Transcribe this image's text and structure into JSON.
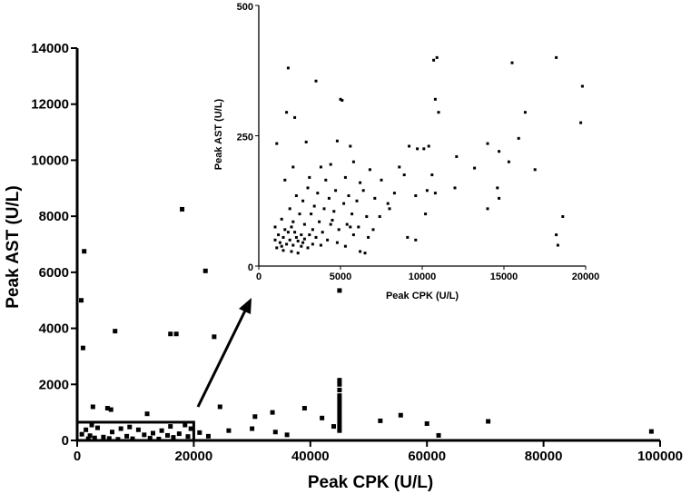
{
  "chart_data": [
    {
      "id": "main",
      "type": "scatter",
      "title": "",
      "xlabel": "Peak CPK (U/L)",
      "ylabel": "Peak AST (U/L)",
      "xlim": [
        0,
        100000
      ],
      "ylim": [
        0,
        14000
      ],
      "xticks": [
        0,
        20000,
        40000,
        60000,
        80000,
        100000
      ],
      "yticks": [
        0,
        2000,
        4000,
        6000,
        8000,
        10000,
        12000,
        14000
      ],
      "xtick_labels": [
        "0",
        "20000",
        "40000",
        "60000",
        "80000",
        "100000"
      ],
      "ytick_labels": [
        "0",
        "2000",
        "4000",
        "6000",
        "8000",
        "10000",
        "12000",
        "14000"
      ],
      "grid": false,
      "highlight_box": {
        "x": [
          0,
          20000
        ],
        "y": [
          0,
          650
        ]
      },
      "points": [
        [
          18000,
          8250
        ],
        [
          1200,
          6750
        ],
        [
          22000,
          6050
        ],
        [
          700,
          5000
        ],
        [
          45000,
          5350
        ],
        [
          6500,
          3900
        ],
        [
          16000,
          3800
        ],
        [
          17000,
          3800
        ],
        [
          23500,
          3700
        ],
        [
          1000,
          3300
        ],
        [
          45000,
          2150
        ],
        [
          45000,
          2000
        ],
        [
          45000,
          1800
        ],
        [
          45000,
          1600
        ],
        [
          45000,
          1450
        ],
        [
          45000,
          1300
        ],
        [
          45000,
          1150
        ],
        [
          45000,
          1000
        ],
        [
          45000,
          850
        ],
        [
          45000,
          700
        ],
        [
          45000,
          550
        ],
        [
          45000,
          450
        ],
        [
          45000,
          350
        ],
        [
          2700,
          1200
        ],
        [
          5200,
          1150
        ],
        [
          5800,
          1100
        ],
        [
          12000,
          950
        ],
        [
          24500,
          1200
        ],
        [
          33500,
          1000
        ],
        [
          39000,
          1150
        ],
        [
          42000,
          800
        ],
        [
          44000,
          500
        ],
        [
          30500,
          850
        ],
        [
          52000,
          700
        ],
        [
          55500,
          900
        ],
        [
          60000,
          600
        ],
        [
          62000,
          180
        ],
        [
          70500,
          680
        ],
        [
          98500,
          320
        ],
        [
          21000,
          280
        ],
        [
          22500,
          150
        ],
        [
          26000,
          350
        ],
        [
          30000,
          420
        ],
        [
          34000,
          300
        ],
        [
          36000,
          200
        ],
        [
          18500,
          550
        ],
        [
          19500,
          420
        ],
        [
          16000,
          500
        ],
        [
          14500,
          350
        ],
        [
          10500,
          380
        ],
        [
          9000,
          480
        ],
        [
          7500,
          420
        ],
        [
          6000,
          300
        ],
        [
          3500,
          450
        ],
        [
          2500,
          550
        ],
        [
          1500,
          380
        ],
        [
          800,
          220
        ],
        [
          11500,
          200
        ],
        [
          13000,
          260
        ],
        [
          15500,
          180
        ],
        [
          17500,
          240
        ],
        [
          8500,
          150
        ],
        [
          4500,
          120
        ],
        [
          3000,
          90
        ],
        [
          1900,
          60
        ],
        [
          12500,
          80
        ],
        [
          5500,
          70
        ],
        [
          9500,
          60
        ],
        [
          14000,
          50
        ],
        [
          7000,
          40
        ],
        [
          16500,
          110
        ],
        [
          19000,
          140
        ],
        [
          2200,
          170
        ]
      ]
    },
    {
      "id": "inset",
      "type": "scatter",
      "title": "",
      "xlabel": "Peak CPK (U/L)",
      "ylabel": "Peak AST (U/L)",
      "xlim": [
        0,
        20000
      ],
      "ylim": [
        0,
        500
      ],
      "xticks": [
        0,
        5000,
        10000,
        15000,
        20000
      ],
      "yticks": [
        0,
        250,
        500
      ],
      "xtick_labels": [
        "0",
        "5000",
        "10000",
        "15000",
        "20000"
      ],
      "ytick_labels": [
        "0",
        "250",
        "500"
      ],
      "grid": false,
      "points": [
        [
          10700,
          395
        ],
        [
          10900,
          400
        ],
        [
          15500,
          390
        ],
        [
          18200,
          400
        ],
        [
          1800,
          380
        ],
        [
          3500,
          355
        ],
        [
          19800,
          345
        ],
        [
          10800,
          320
        ],
        [
          11000,
          295
        ],
        [
          1700,
          295
        ],
        [
          2200,
          285
        ],
        [
          16300,
          295
        ],
        [
          19700,
          275
        ],
        [
          5100,
          318
        ],
        [
          5000,
          320
        ],
        [
          14000,
          235
        ],
        [
          15900,
          245
        ],
        [
          12100,
          210
        ],
        [
          14700,
          220
        ],
        [
          15300,
          200
        ],
        [
          16900,
          185
        ],
        [
          13200,
          188
        ],
        [
          9700,
          225
        ],
        [
          10100,
          225
        ],
        [
          10400,
          230
        ],
        [
          9200,
          230
        ],
        [
          4800,
          240
        ],
        [
          5600,
          230
        ],
        [
          1100,
          235
        ],
        [
          2900,
          238
        ],
        [
          3800,
          190
        ],
        [
          4400,
          195
        ],
        [
          5800,
          200
        ],
        [
          6800,
          185
        ],
        [
          2100,
          190
        ],
        [
          8600,
          190
        ],
        [
          8900,
          175
        ],
        [
          10600,
          175
        ],
        [
          1600,
          165
        ],
        [
          3100,
          170
        ],
        [
          4100,
          165
        ],
        [
          5300,
          170
        ],
        [
          6200,
          160
        ],
        [
          7500,
          165
        ],
        [
          12000,
          150
        ],
        [
          14600,
          150
        ],
        [
          10300,
          145
        ],
        [
          10800,
          140
        ],
        [
          8300,
          140
        ],
        [
          9600,
          135
        ],
        [
          3000,
          150
        ],
        [
          3600,
          140
        ],
        [
          4700,
          145
        ],
        [
          5500,
          135
        ],
        [
          6400,
          145
        ],
        [
          2300,
          135
        ],
        [
          2700,
          125
        ],
        [
          4300,
          130
        ],
        [
          5200,
          120
        ],
        [
          6000,
          125
        ],
        [
          7100,
          130
        ],
        [
          7900,
          120
        ],
        [
          1900,
          110
        ],
        [
          3400,
          115
        ],
        [
          4000,
          110
        ],
        [
          4600,
          105
        ],
        [
          2500,
          100
        ],
        [
          3200,
          100
        ],
        [
          5700,
          100
        ],
        [
          6600,
          95
        ],
        [
          7400,
          95
        ],
        [
          14700,
          130
        ],
        [
          14000,
          110
        ],
        [
          18600,
          95
        ],
        [
          1400,
          90
        ],
        [
          2100,
          85
        ],
        [
          2800,
          80
        ],
        [
          3700,
          85
        ],
        [
          4500,
          88
        ],
        [
          5400,
          80
        ],
        [
          6100,
          75
        ],
        [
          1000,
          75
        ],
        [
          1600,
          70
        ],
        [
          2200,
          65
        ],
        [
          2600,
          60
        ],
        [
          3300,
          70
        ],
        [
          3900,
          65
        ],
        [
          4900,
          70
        ],
        [
          5800,
          60
        ],
        [
          6700,
          55
        ],
        [
          1200,
          60
        ],
        [
          1500,
          55
        ],
        [
          1900,
          50
        ],
        [
          2400,
          48
        ],
        [
          2800,
          52
        ],
        [
          3500,
          55
        ],
        [
          4200,
          50
        ],
        [
          4800,
          45
        ],
        [
          1300,
          45
        ],
        [
          1700,
          42
        ],
        [
          2100,
          40
        ],
        [
          2600,
          38
        ],
        [
          3000,
          35
        ],
        [
          3800,
          40
        ],
        [
          5300,
          38
        ],
        [
          1100,
          35
        ],
        [
          1500,
          30
        ],
        [
          2000,
          28
        ],
        [
          2400,
          25
        ],
        [
          6200,
          28
        ],
        [
          6500,
          25
        ],
        [
          9100,
          55
        ],
        [
          9600,
          50
        ],
        [
          18200,
          60
        ],
        [
          18300,
          40
        ],
        [
          10200,
          100
        ],
        [
          8000,
          110
        ],
        [
          1000,
          50
        ],
        [
          2300,
          55
        ],
        [
          1800,
          65
        ],
        [
          2700,
          45
        ],
        [
          3300,
          42
        ],
        [
          1400,
          38
        ],
        [
          5600,
          75
        ],
        [
          4400,
          80
        ],
        [
          7000,
          70
        ],
        [
          2000,
          75
        ],
        [
          3100,
          60
        ]
      ]
    }
  ]
}
